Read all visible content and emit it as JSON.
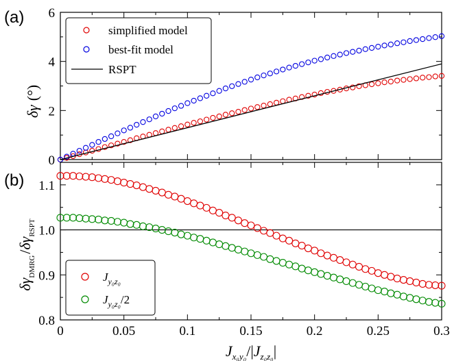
{
  "chart_data": [
    {
      "panel": "(a)",
      "type": "scatter",
      "xlim": [
        0,
        0.3
      ],
      "ylim": [
        0,
        6
      ],
      "xticks": [
        0,
        0.05,
        0.1,
        0.15,
        0.2,
        0.25,
        0.3
      ],
      "yticks": [
        0,
        2,
        4,
        6
      ],
      "ytick_labels": [
        "0",
        "2",
        "4",
        "6"
      ],
      "ylabel_main": "δγ",
      "ylabel_unit": "(°)",
      "legend": "top-left",
      "grid": false,
      "series": [
        {
          "name": "simplified model",
          "kind": "markers",
          "color": "#e00000",
          "x": [
            0.0,
            0.005,
            0.01,
            0.015,
            0.02,
            0.025,
            0.03,
            0.035,
            0.04,
            0.045,
            0.05,
            0.055,
            0.06,
            0.065,
            0.07,
            0.075,
            0.08,
            0.085,
            0.09,
            0.095,
            0.1,
            0.105,
            0.11,
            0.115,
            0.12,
            0.125,
            0.13,
            0.135,
            0.14,
            0.145,
            0.15,
            0.155,
            0.16,
            0.165,
            0.17,
            0.175,
            0.18,
            0.185,
            0.19,
            0.195,
            0.2,
            0.205,
            0.21,
            0.215,
            0.22,
            0.225,
            0.23,
            0.235,
            0.24,
            0.245,
            0.25,
            0.255,
            0.26,
            0.265,
            0.27,
            0.275,
            0.28,
            0.285,
            0.29,
            0.295,
            0.3
          ],
          "y": [
            0.0,
            0.07,
            0.14,
            0.22,
            0.29,
            0.36,
            0.43,
            0.51,
            0.58,
            0.65,
            0.72,
            0.79,
            0.87,
            0.94,
            1.01,
            1.08,
            1.15,
            1.22,
            1.29,
            1.36,
            1.43,
            1.5,
            1.56,
            1.63,
            1.7,
            1.76,
            1.83,
            1.89,
            1.95,
            2.02,
            2.08,
            2.14,
            2.2,
            2.26,
            2.32,
            2.38,
            2.44,
            2.49,
            2.55,
            2.6,
            2.65,
            2.71,
            2.76,
            2.8,
            2.85,
            2.9,
            2.94,
            2.99,
            3.03,
            3.07,
            3.11,
            3.15,
            3.18,
            3.22,
            3.25,
            3.28,
            3.31,
            3.34,
            3.36,
            3.39,
            3.41
          ]
        },
        {
          "name": "best-fit model",
          "kind": "markers",
          "color": "#0000e0",
          "x": [
            0.0,
            0.005,
            0.01,
            0.015,
            0.02,
            0.025,
            0.03,
            0.035,
            0.04,
            0.045,
            0.05,
            0.055,
            0.06,
            0.065,
            0.07,
            0.075,
            0.08,
            0.085,
            0.09,
            0.095,
            0.1,
            0.105,
            0.11,
            0.115,
            0.12,
            0.125,
            0.13,
            0.135,
            0.14,
            0.145,
            0.15,
            0.155,
            0.16,
            0.165,
            0.17,
            0.175,
            0.18,
            0.185,
            0.19,
            0.195,
            0.2,
            0.205,
            0.21,
            0.215,
            0.22,
            0.225,
            0.23,
            0.235,
            0.24,
            0.245,
            0.25,
            0.255,
            0.26,
            0.265,
            0.27,
            0.275,
            0.28,
            0.285,
            0.29,
            0.295,
            0.3
          ],
          "y": [
            0.0,
            0.12,
            0.24,
            0.36,
            0.48,
            0.6,
            0.72,
            0.84,
            0.95,
            1.07,
            1.19,
            1.3,
            1.42,
            1.53,
            1.64,
            1.76,
            1.87,
            1.98,
            2.09,
            2.19,
            2.3,
            2.4,
            2.5,
            2.6,
            2.7,
            2.8,
            2.9,
            2.99,
            3.08,
            3.17,
            3.26,
            3.35,
            3.43,
            3.51,
            3.59,
            3.67,
            3.75,
            3.82,
            3.89,
            3.96,
            4.03,
            4.09,
            4.16,
            4.22,
            4.28,
            4.34,
            4.39,
            4.44,
            4.5,
            4.55,
            4.6,
            4.65,
            4.69,
            4.74,
            4.78,
            4.83,
            4.87,
            4.91,
            4.95,
            4.99,
            5.03
          ]
        },
        {
          "name": "RSPT",
          "kind": "line",
          "color": "#000000",
          "x": [
            0.0,
            0.3
          ],
          "y": [
            0.0,
            3.9
          ]
        }
      ]
    },
    {
      "panel": "(b)",
      "type": "scatter",
      "xlim": [
        0,
        0.3
      ],
      "ylim": [
        0.8,
        1.15
      ],
      "xticks": [
        0,
        0.05,
        0.1,
        0.15,
        0.2,
        0.25,
        0.3
      ],
      "xtick_labels": [
        "0",
        "0.05",
        "0.1",
        "0.15",
        "0.2",
        "0.25",
        "0.3"
      ],
      "yticks": [
        0.8,
        0.9,
        1.0,
        1.1
      ],
      "ytick_labels": [
        "0.8",
        "0.9",
        "1.0",
        "1.1"
      ],
      "ylabel_main": "δγ",
      "ylabel_sub1": "DMRG",
      "ylabel_sub2": "RSPT",
      "xlabel_J": "J",
      "xlabel_sub1": "x₀y₀",
      "xlabel_sub2": "z₀z₀",
      "legend": "bottom-left",
      "grid": false,
      "reference_line": 1.0,
      "series": [
        {
          "name": "J",
          "name_sub": "y₀z₀",
          "name_suffix": "",
          "kind": "markers",
          "color": "#e00000",
          "x": [
            0.0,
            0.005,
            0.01,
            0.015,
            0.02,
            0.025,
            0.03,
            0.035,
            0.04,
            0.045,
            0.05,
            0.055,
            0.06,
            0.065,
            0.07,
            0.075,
            0.08,
            0.085,
            0.09,
            0.095,
            0.1,
            0.105,
            0.11,
            0.115,
            0.12,
            0.125,
            0.13,
            0.135,
            0.14,
            0.145,
            0.15,
            0.155,
            0.16,
            0.165,
            0.17,
            0.175,
            0.18,
            0.185,
            0.19,
            0.195,
            0.2,
            0.205,
            0.21,
            0.215,
            0.22,
            0.225,
            0.23,
            0.235,
            0.24,
            0.245,
            0.25,
            0.255,
            0.26,
            0.265,
            0.27,
            0.275,
            0.28,
            0.285,
            0.29,
            0.295,
            0.3
          ],
          "y": [
            1.12,
            1.12,
            1.12,
            1.119,
            1.118,
            1.117,
            1.115,
            1.113,
            1.111,
            1.108,
            1.105,
            1.102,
            1.099,
            1.095,
            1.091,
            1.087,
            1.083,
            1.078,
            1.074,
            1.069,
            1.064,
            1.059,
            1.054,
            1.049,
            1.043,
            1.038,
            1.032,
            1.027,
            1.021,
            1.015,
            1.01,
            1.004,
            0.998,
            0.993,
            0.987,
            0.981,
            0.976,
            0.97,
            0.965,
            0.959,
            0.954,
            0.948,
            0.943,
            0.938,
            0.933,
            0.928,
            0.923,
            0.918,
            0.913,
            0.909,
            0.904,
            0.9,
            0.896,
            0.892,
            0.889,
            0.886,
            0.883,
            0.88,
            0.878,
            0.877,
            0.876
          ]
        },
        {
          "name": "J",
          "name_sub": "y₀z₀",
          "name_suffix": "/2",
          "kind": "markers",
          "color": "#008a00",
          "x": [
            0.0,
            0.005,
            0.01,
            0.015,
            0.02,
            0.025,
            0.03,
            0.035,
            0.04,
            0.045,
            0.05,
            0.055,
            0.06,
            0.065,
            0.07,
            0.075,
            0.08,
            0.085,
            0.09,
            0.095,
            0.1,
            0.105,
            0.11,
            0.115,
            0.12,
            0.125,
            0.13,
            0.135,
            0.14,
            0.145,
            0.15,
            0.155,
            0.16,
            0.165,
            0.17,
            0.175,
            0.18,
            0.185,
            0.19,
            0.195,
            0.2,
            0.205,
            0.21,
            0.215,
            0.22,
            0.225,
            0.23,
            0.235,
            0.24,
            0.245,
            0.25,
            0.255,
            0.26,
            0.265,
            0.27,
            0.275,
            0.28,
            0.285,
            0.29,
            0.295,
            0.3
          ],
          "y": [
            1.027,
            1.027,
            1.027,
            1.026,
            1.025,
            1.024,
            1.023,
            1.021,
            1.02,
            1.018,
            1.016,
            1.013,
            1.011,
            1.008,
            1.006,
            1.003,
            1.0,
            0.997,
            0.994,
            0.99,
            0.987,
            0.983,
            0.98,
            0.976,
            0.972,
            0.968,
            0.964,
            0.96,
            0.956,
            0.952,
            0.948,
            0.944,
            0.94,
            0.935,
            0.931,
            0.927,
            0.923,
            0.919,
            0.914,
            0.91,
            0.906,
            0.902,
            0.898,
            0.894,
            0.89,
            0.886,
            0.882,
            0.878,
            0.874,
            0.87,
            0.866,
            0.863,
            0.859,
            0.856,
            0.852,
            0.849,
            0.846,
            0.843,
            0.84,
            0.838,
            0.836
          ]
        }
      ]
    }
  ]
}
